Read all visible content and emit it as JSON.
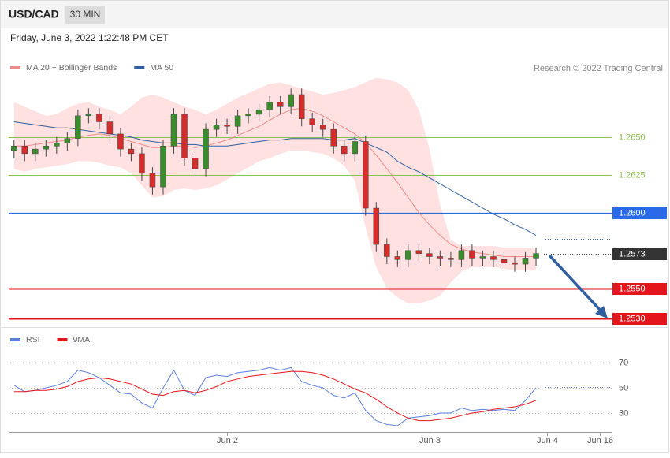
{
  "header": {
    "symbol": "USD/CAD",
    "interval": "30 MIN",
    "timestamp": "Friday, June 3, 2022 1:22:48 PM CET"
  },
  "chart_data": [
    {
      "type": "candlestick",
      "source": "Research © 2022 Trading Central",
      "xlim": [
        -0.5,
        56.1
      ],
      "ylim": [
        1.2527,
        1.2691
      ],
      "up_color": "#3d8b2f",
      "down_color": "#d62c2c",
      "open": [
        1.2641,
        1.2644,
        1.2639,
        1.2642,
        1.2644,
        1.2646,
        1.2649,
        1.2664,
        1.2665,
        1.266,
        1.2652,
        1.2642,
        1.2639,
        1.2626,
        1.2617,
        1.2644,
        1.2665,
        1.2636,
        1.2629,
        1.2655,
        1.2658,
        1.2657,
        1.2664,
        1.2665,
        1.2668,
        1.2673,
        1.267,
        1.2678,
        1.2662,
        1.2658,
        1.2655,
        1.2644,
        1.2639,
        1.2647,
        1.2603,
        1.2579,
        1.2571,
        1.2569,
        1.2575,
        1.2573,
        1.2571,
        1.257,
        1.2569,
        1.2575,
        1.257,
        1.2571,
        1.2569,
        1.2567,
        1.2566,
        1.257
      ],
      "high": [
        1.2648,
        1.2648,
        1.2646,
        1.2648,
        1.265,
        1.2653,
        1.2668,
        1.2669,
        1.2669,
        1.2664,
        1.2656,
        1.2646,
        1.2643,
        1.263,
        1.2648,
        1.2669,
        1.2669,
        1.264,
        1.2659,
        1.2662,
        1.2662,
        1.2668,
        1.2669,
        1.2672,
        1.2677,
        1.2677,
        1.2682,
        1.2682,
        1.2666,
        1.2662,
        1.2659,
        1.2648,
        1.2651,
        1.2651,
        1.2607,
        1.2583,
        1.2575,
        1.2579,
        1.2579,
        1.2577,
        1.2575,
        1.2574,
        1.2579,
        1.2579,
        1.2575,
        1.2575,
        1.2573,
        1.2571,
        1.2574,
        1.2577
      ],
      "low": [
        1.2636,
        1.2634,
        1.2634,
        1.2637,
        1.2639,
        1.2641,
        1.2644,
        1.2659,
        1.2655,
        1.2647,
        1.2637,
        1.2634,
        1.2621,
        1.2612,
        1.2612,
        1.2639,
        1.2631,
        1.2624,
        1.2624,
        1.265,
        1.2652,
        1.2652,
        1.2659,
        1.266,
        1.2663,
        1.2665,
        1.2665,
        1.2657,
        1.2653,
        1.265,
        1.2639,
        1.2634,
        1.2634,
        1.2598,
        1.2574,
        1.2566,
        1.2564,
        1.2564,
        1.2568,
        1.2566,
        1.2565,
        1.2564,
        1.2564,
        1.2565,
        1.2565,
        1.2564,
        1.2562,
        1.2561,
        1.2561,
        1.2565
      ],
      "close": [
        1.2644,
        1.2639,
        1.2642,
        1.2644,
        1.2646,
        1.2649,
        1.2664,
        1.2665,
        1.266,
        1.2652,
        1.2642,
        1.2639,
        1.2626,
        1.2617,
        1.2644,
        1.2665,
        1.2636,
        1.2629,
        1.2655,
        1.2658,
        1.2657,
        1.2664,
        1.2665,
        1.2668,
        1.2673,
        1.267,
        1.2678,
        1.2662,
        1.2658,
        1.2655,
        1.2644,
        1.2639,
        1.2647,
        1.2603,
        1.2579,
        1.2571,
        1.2569,
        1.2575,
        1.2573,
        1.2571,
        1.257,
        1.2569,
        1.2575,
        1.257,
        1.2571,
        1.2569,
        1.2567,
        1.2566,
        1.257,
        1.2573
      ],
      "series": [
        {
          "name": "MA 20 + Bollinger Bands",
          "color": "#f08a8a",
          "band_color": "#ffe1e1",
          "values": [
            1.2644,
            1.2644,
            1.2645,
            1.2646,
            1.2647,
            1.2648,
            1.265,
            1.2651,
            1.2652,
            1.2651,
            1.2649,
            1.2647,
            1.2645,
            1.2643,
            1.2643,
            1.2644,
            1.2644,
            1.2643,
            1.2644,
            1.2646,
            1.2648,
            1.2651,
            1.2654,
            1.2657,
            1.2661,
            1.2665,
            1.2668,
            1.2669,
            1.2667,
            1.2664,
            1.266,
            1.2656,
            1.2652,
            1.2646,
            1.2638,
            1.2629,
            1.262,
            1.261,
            1.26,
            1.2592,
            1.2585,
            1.2579,
            1.2576,
            1.2574,
            1.2573,
            1.2572,
            1.2571,
            1.2571,
            1.2571,
            1.2571
          ],
          "upper": [
            1.2673,
            1.267,
            1.2667,
            1.2664,
            1.2665,
            1.2669,
            1.2672,
            1.2673,
            1.267,
            1.2668,
            1.2665,
            1.267,
            1.2676,
            1.2678,
            1.2676,
            1.2673,
            1.267,
            1.2668,
            1.2665,
            1.2668,
            1.2672,
            1.2676,
            1.2679,
            1.2682,
            1.2685,
            1.2686,
            1.2684,
            1.2682,
            1.268,
            1.2678,
            1.2679,
            1.2681,
            1.2683,
            1.2686,
            1.2689,
            1.2688,
            1.2686,
            1.2681,
            1.2668,
            1.2642,
            1.2605,
            1.2582,
            1.2578,
            1.2578,
            1.2578,
            1.2578,
            1.2577,
            1.2577,
            1.2577,
            1.2576
          ],
          "lower": [
            1.2629,
            1.2627,
            1.2629,
            1.263,
            1.2631,
            1.2632,
            1.2634,
            1.2634,
            1.2633,
            1.2631,
            1.263,
            1.2626,
            1.2618,
            1.261,
            1.2611,
            1.2615,
            1.2616,
            1.2615,
            1.2616,
            1.2618,
            1.2622,
            1.2626,
            1.263,
            1.2634,
            1.2636,
            1.2639,
            1.2641,
            1.2641,
            1.264,
            1.2639,
            1.2636,
            1.2631,
            1.2621,
            1.259,
            1.2564,
            1.255,
            1.2544,
            1.254,
            1.254,
            1.2542,
            1.2545,
            1.2554,
            1.2561,
            1.2564,
            1.2564,
            1.2564,
            1.2563,
            1.2562,
            1.2562,
            1.2562
          ]
        },
        {
          "name": "MA 50",
          "color": "#2f5f9e",
          "values": [
            1.266,
            1.2659,
            1.2658,
            1.2657,
            1.2656,
            1.2656,
            1.2655,
            1.2654,
            1.2653,
            1.2652,
            1.2651,
            1.265,
            1.2648,
            1.2647,
            1.2646,
            1.2646,
            1.2645,
            1.2645,
            1.2644,
            1.2644,
            1.2644,
            1.2645,
            1.2646,
            1.2647,
            1.2648,
            1.2648,
            1.2649,
            1.2649,
            1.2649,
            1.2649,
            1.2648,
            1.2648,
            1.2649,
            1.2646,
            1.2643,
            1.264,
            1.2634,
            1.263,
            1.2627,
            1.2623,
            1.2619,
            1.2615,
            1.2611,
            1.2607,
            1.2603,
            1.2599,
            1.2596,
            1.2592,
            1.2589,
            1.2585
          ]
        }
      ],
      "levels": [
        {
          "value": 1.265,
          "label": "1.2650",
          "color": "#8cc152",
          "boxed": false
        },
        {
          "value": 1.2625,
          "label": "1.2625",
          "color": "#8cc152",
          "boxed": false
        },
        {
          "value": 1.26,
          "label": "1.2600",
          "color": "#2a6ae8",
          "boxed": true
        },
        {
          "value": 1.2573,
          "label": "1.2573",
          "color": "#333333",
          "boxed": true,
          "dotted": true
        },
        {
          "value": 1.255,
          "label": "1.2550",
          "color": "#e3161b",
          "boxed": true
        },
        {
          "value": 1.253,
          "label": "1.2530",
          "color": "#e3161b",
          "boxed": true
        }
      ]
    },
    {
      "type": "line",
      "xlim": [
        -0.5,
        56.1
      ],
      "ylim": [
        20,
        80
      ],
      "yticks": [
        30,
        50,
        70
      ],
      "grid": true,
      "xticks": [
        {
          "value": 20,
          "label": "Jun 2"
        },
        {
          "value": 39,
          "label": "Jun 3"
        },
        {
          "value": 50,
          "label": "Jun 4"
        },
        {
          "value": 55,
          "label": "Jun 16"
        }
      ],
      "series": [
        {
          "name": "RSI",
          "color": "#5b7fdc",
          "values": [
            52,
            47,
            48,
            50,
            52,
            55,
            64,
            62,
            58,
            52,
            46,
            45,
            38,
            34,
            50,
            64,
            48,
            44,
            58,
            60,
            59,
            62,
            63,
            64,
            66,
            64,
            66,
            55,
            52,
            50,
            44,
            42,
            46,
            32,
            24,
            21,
            20,
            26,
            27,
            28,
            30,
            30,
            34,
            32,
            33,
            32,
            33,
            32,
            40,
            50
          ]
        },
        {
          "name": "9MA",
          "color": "#e3161b",
          "values": [
            47,
            47,
            48,
            48,
            49,
            51,
            55,
            57,
            58,
            57,
            55,
            53,
            49,
            45,
            44,
            47,
            48,
            46,
            48,
            51,
            55,
            57,
            59,
            60,
            61,
            62,
            63,
            63,
            62,
            60,
            57,
            53,
            49,
            46,
            41,
            35,
            30,
            26,
            24,
            24,
            25,
            26,
            28,
            30,
            31,
            33,
            34,
            35,
            37,
            40
          ]
        }
      ]
    }
  ]
}
